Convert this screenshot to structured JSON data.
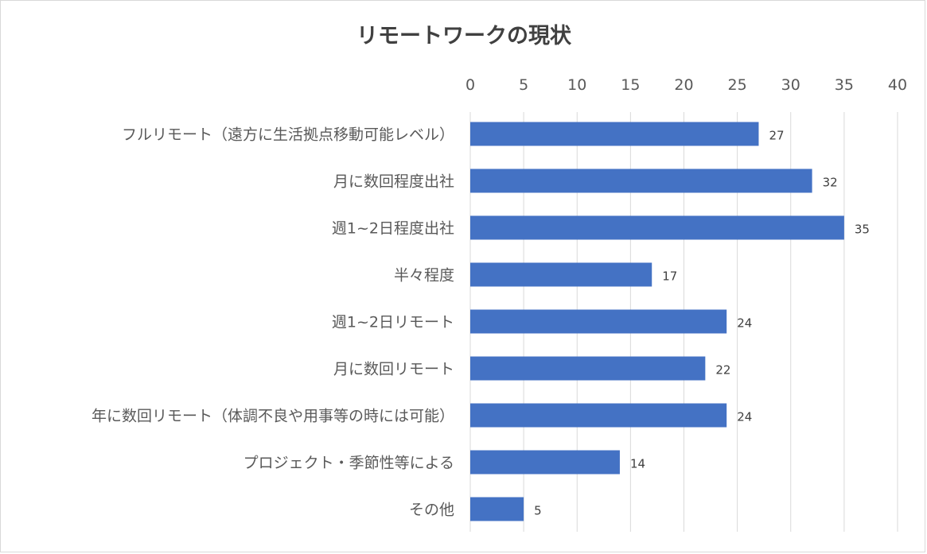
{
  "chart_data": {
    "type": "bar",
    "orientation": "horizontal",
    "title": "リモートワークの現状",
    "categories": [
      "フルリモート（遠方に生活拠点移動可能レベル）",
      "月に数回程度出社",
      "週1~2日程度出社",
      "半々程度",
      "週1~2日リモート",
      "月に数回リモート",
      "年に数回リモート（体調不良や用事等の時には可能）",
      "プロジェクト・季節性等による",
      "その他"
    ],
    "values": [
      27,
      32,
      35,
      17,
      24,
      22,
      24,
      14,
      5
    ],
    "xlim": [
      0,
      40
    ],
    "xticks": [
      "0",
      "5",
      "10",
      "15",
      "20",
      "25",
      "30",
      "35",
      "40"
    ],
    "x_axis_position": "top",
    "grid": true,
    "bar_color": "#4472C4",
    "data_labels": [
      "27",
      "32",
      "35",
      "17",
      "24",
      "22",
      "24",
      "14",
      "5"
    ]
  }
}
